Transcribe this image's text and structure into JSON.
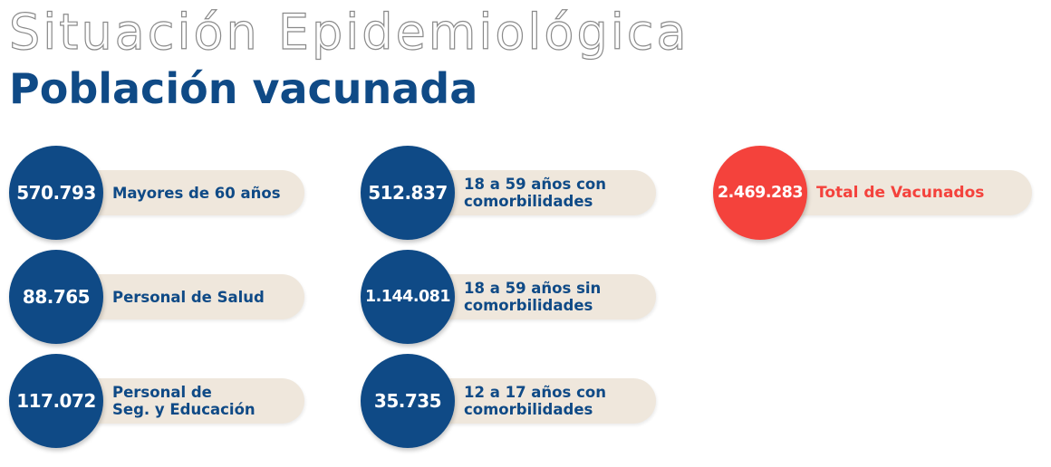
{
  "header": {
    "title": "Situación Epidemiológica",
    "subtitle": "Población vacunada"
  },
  "stats": [
    {
      "value": "570.793",
      "label": "Mayores de 60 años"
    },
    {
      "value": "88.765",
      "label": "Personal de Salud"
    },
    {
      "value": "117.072",
      "label": "Personal de\nSeg. y Educación"
    },
    {
      "value": "512.837",
      "label": "18 a 59 años con\ncomorbilidades"
    },
    {
      "value": "1.144.081",
      "label": "18 a 59 años sin\ncomorbilidades"
    },
    {
      "value": "35.735",
      "label": "12 a 17 años con\ncomorbilidades"
    }
  ],
  "total": {
    "value": "2.469.283",
    "label": "Total de Vacunados"
  },
  "colors": {
    "primary": "#0f4a86",
    "accent": "#f4423c",
    "pill_background": "#efe7dc"
  }
}
